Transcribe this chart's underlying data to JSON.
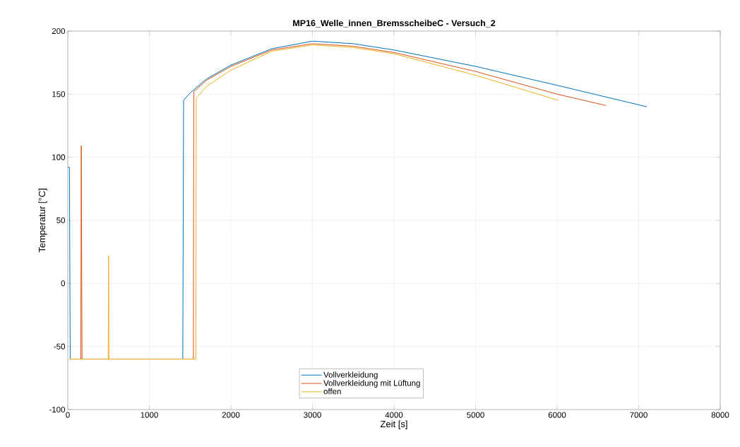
{
  "chart_data": {
    "type": "line",
    "title": "MP16_Welle_innen_BremsscheibeC - Versuch_2",
    "xlabel": "Zeit [s]",
    "ylabel": "Temperatur [°C]",
    "xlim": [
      0,
      8000
    ],
    "ylim": [
      -100,
      200
    ],
    "xticks": [
      0,
      1000,
      2000,
      3000,
      4000,
      5000,
      6000,
      7000,
      8000
    ],
    "yticks": [
      -100,
      -50,
      0,
      50,
      100,
      150,
      200
    ],
    "grid": true,
    "legend": "bottom",
    "line_style": "solid",
    "marker": "none",
    "series": [
      {
        "name": "Vollverkleidung",
        "color": "#0072bd",
        "x": [
          0,
          20,
          30,
          1410,
          1420,
          1500,
          1700,
          2000,
          2500,
          3000,
          3500,
          4000,
          5000,
          6000,
          7100
        ],
        "values": [
          92,
          92,
          -60,
          -60,
          145,
          151,
          162,
          173,
          186,
          192,
          190,
          185,
          172,
          157,
          140
        ]
      },
      {
        "name": "Vollverkleidung mit Lüftung",
        "color": "#d95319",
        "x": [
          20,
          160,
          165,
          175,
          1540,
          1545,
          1700,
          2000,
          2500,
          3000,
          3500,
          4000,
          5000,
          6000,
          6600
        ],
        "values": [
          -60,
          -60,
          109,
          -60,
          -60,
          152,
          161,
          172,
          185,
          190,
          188,
          183,
          168,
          150,
          141
        ]
      },
      {
        "name": "offen",
        "color": "#edb120",
        "x": [
          20,
          495,
          500,
          505,
          1570,
          1575,
          1700,
          2000,
          2500,
          3000,
          3500,
          4000,
          5000,
          6020
        ],
        "values": [
          -60,
          -60,
          22,
          -60,
          -60,
          147,
          156,
          169,
          184,
          189,
          187,
          182,
          165,
          145
        ]
      }
    ]
  }
}
